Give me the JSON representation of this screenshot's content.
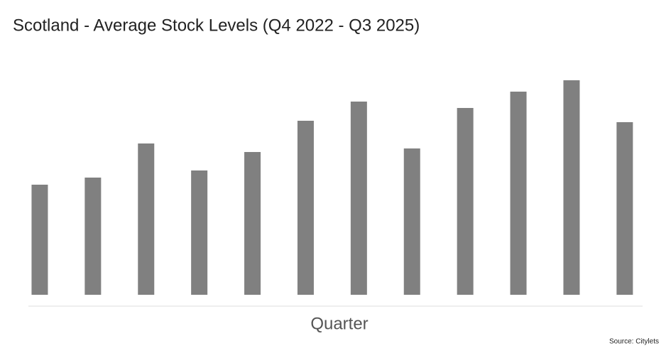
{
  "chart_data": {
    "type": "bar",
    "title": "Scotland - Average Stock Levels (Q4 2022 - Q3 2025)",
    "x_label": "Quarter",
    "source": "Source: Citylets",
    "categories": [
      null,
      null,
      null,
      null,
      null,
      null,
      null,
      null,
      null,
      null,
      null,
      null
    ],
    "values": [
      155,
      165,
      213,
      175,
      201,
      245,
      272,
      206,
      263,
      286,
      302,
      243
    ],
    "color": "#808080",
    "ylim": [
      0,
      315
    ]
  }
}
